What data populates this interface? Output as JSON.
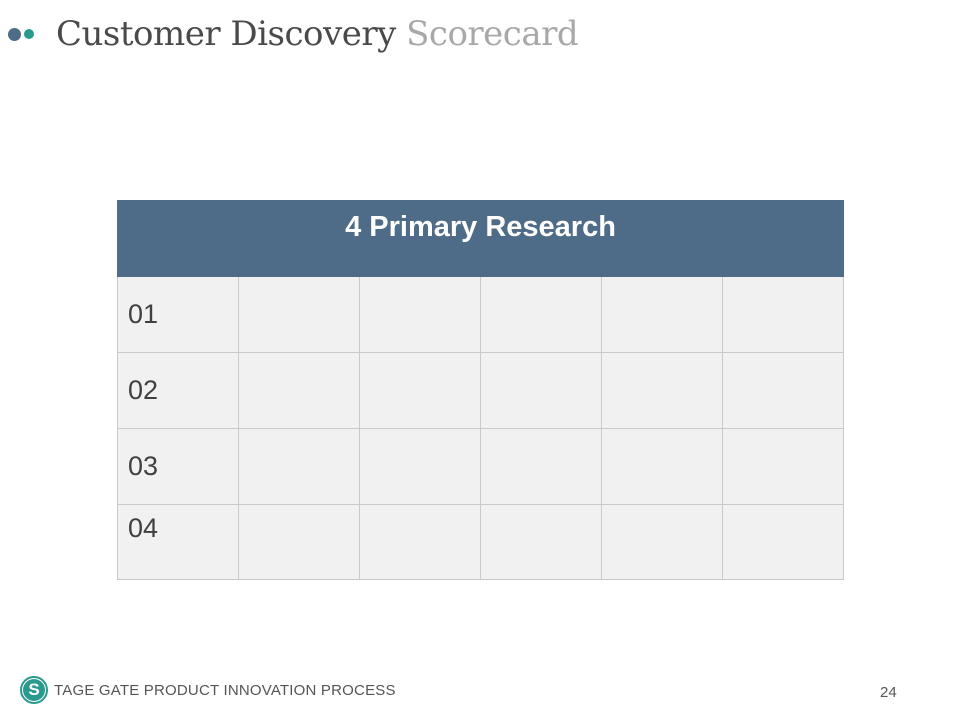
{
  "header": {
    "title_main": "Customer Discovery",
    "title_accent": "Scorecard"
  },
  "table": {
    "header": "4 Primary Research",
    "rows": [
      {
        "label": "01",
        "cells": [
          "",
          "",
          "",
          "",
          ""
        ]
      },
      {
        "label": "02",
        "cells": [
          "",
          "",
          "",
          "",
          ""
        ]
      },
      {
        "label": "03",
        "cells": [
          "",
          "",
          "",
          "",
          ""
        ]
      },
      {
        "label": "04",
        "cells": [
          "",
          "",
          "",
          "",
          ""
        ]
      }
    ]
  },
  "footer": {
    "logo_letter": "S",
    "text": "TAGE GATE PRODUCT INNOVATION PROCESS",
    "page_number": "24"
  },
  "colors": {
    "header_fill": "#4e6b87",
    "accent_teal": "#2a9a8f",
    "cell_fill": "#f1f1f1"
  }
}
